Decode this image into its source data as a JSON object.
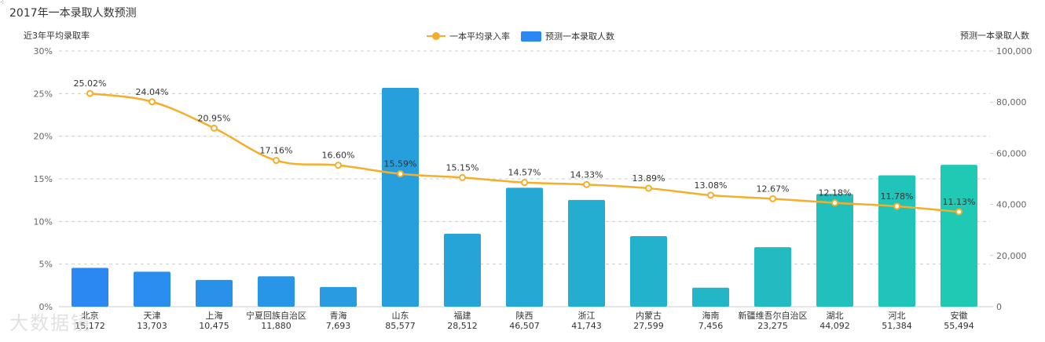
{
  "title": "2017年一本录取人数预测",
  "corner_mark": "⁖",
  "watermark": "大数据镜",
  "colors": {
    "line": "#f5ae2a",
    "bar_start": "#2b88f3",
    "bar_end": "#1fc9b4",
    "grid": "#cccccc",
    "axis_text": "#666666"
  },
  "legend": {
    "line_label": "一本平均录入率",
    "bar_label": "预测一本录取人数",
    "placement": "top-center"
  },
  "chart_data": {
    "type": "bar",
    "title": "2017年一本录取人数预测",
    "categories": [
      "北京",
      "天津",
      "上海",
      "宁夏回族自治区",
      "青海",
      "山东",
      "福建",
      "陕西",
      "浙江",
      "内蒙古",
      "海南",
      "新疆维吾尔自治区",
      "湖北",
      "河北",
      "安徽"
    ],
    "bar_value_labels": [
      "15,172",
      "13,703",
      "10,475",
      "11,880",
      "7,693",
      "85,577",
      "28,512",
      "46,507",
      "41,743",
      "27,599",
      "7,456",
      "23,275",
      "44,092",
      "51,384",
      "55,494"
    ],
    "series": [
      {
        "name": "预测一本录取人数",
        "type": "bar",
        "axis": "right",
        "values": [
          15172,
          13703,
          10475,
          11880,
          7693,
          85577,
          28512,
          46507,
          41743,
          27599,
          7456,
          23275,
          44092,
          51384,
          55494
        ]
      },
      {
        "name": "一本平均录入率",
        "type": "line",
        "axis": "left",
        "values": [
          25.02,
          24.04,
          20.95,
          17.16,
          16.6,
          15.59,
          15.15,
          14.57,
          14.33,
          13.89,
          13.08,
          12.67,
          12.18,
          11.78,
          11.13
        ],
        "labels": [
          "25.02%",
          "24.04%",
          "20.95%",
          "17.16%",
          "16.60%",
          "15.59%",
          "15.15%",
          "14.57%",
          "14.33%",
          "13.89%",
          "13.08%",
          "12.67%",
          "12.18%",
          "11.78%",
          "11.13%"
        ]
      }
    ],
    "y_left": {
      "label": "近3年平均录取率",
      "lim": [
        0,
        30
      ],
      "ticks": [
        0,
        5,
        10,
        15,
        20,
        25,
        30
      ],
      "tick_labels": [
        "0%",
        "5%",
        "10%",
        "15%",
        "20%",
        "25%",
        "30%"
      ]
    },
    "y_right": {
      "label": "预测一本录取人数",
      "lim": [
        0,
        100000
      ],
      "ticks": [
        0,
        20000,
        40000,
        60000,
        80000,
        100000
      ],
      "tick_labels": [
        "0",
        "20,000",
        "40,000",
        "60,000",
        "80,000",
        "100,000"
      ]
    },
    "grid": true
  }
}
